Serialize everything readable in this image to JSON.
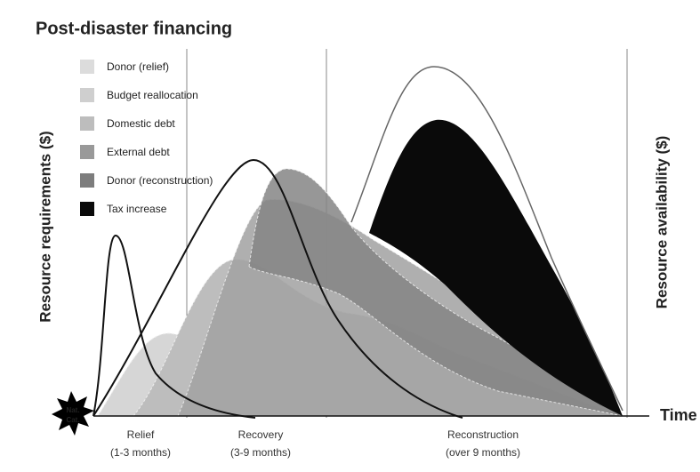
{
  "title": "Post-disaster financing",
  "legend": [
    "Donor (relief)",
    "Budget reallocation",
    "Domestic debt",
    "External debt",
    "Donor (reconstruction)",
    "Tax increase"
  ],
  "y_axis_left": "Resource requirements ($)",
  "y_axis_right": "Resource availability ($)",
  "x_axis": "Time",
  "event": [
    "Nat.",
    "Cat."
  ],
  "phases": [
    {
      "name": "Relief",
      "duration": "(1-3 months)"
    },
    {
      "name": "Recovery",
      "duration": "(3-9 months)"
    },
    {
      "name": "Reconstruction",
      "duration": "(over 9 months)"
    }
  ]
}
